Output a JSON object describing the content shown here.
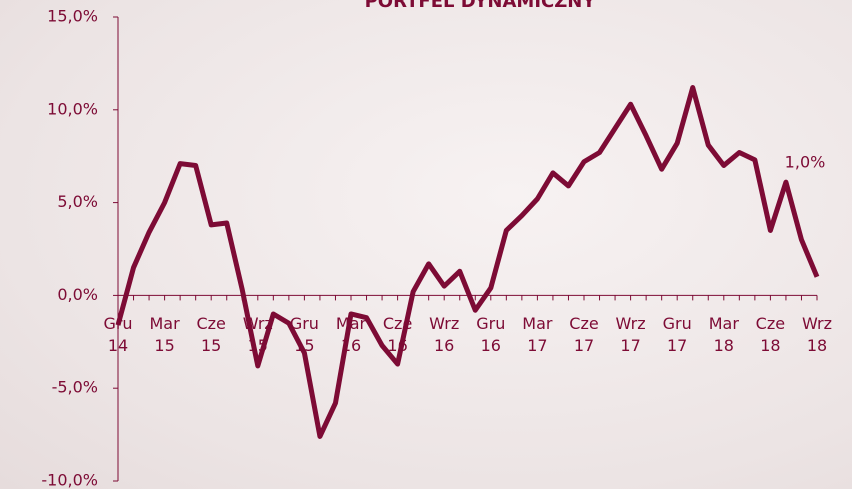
{
  "chart_data": {
    "type": "line",
    "title": "PORTFEL DYNAMICZNY",
    "categories": [
      "Gru 14",
      null,
      null,
      "Mar 15",
      null,
      null,
      "Cze 15",
      null,
      null,
      "Wrz 15",
      null,
      null,
      "Gru 15",
      null,
      null,
      "Mar 16",
      null,
      null,
      "Cze 16",
      null,
      null,
      "Wrz 16",
      null,
      null,
      "Gru 16",
      null,
      null,
      "Mar 17",
      null,
      null,
      "Cze 17",
      null,
      null,
      "Wrz 17",
      null,
      null,
      "Gru 17",
      null,
      null,
      "Mar 18",
      null,
      null,
      "Cze 18",
      null,
      null,
      "Wrz 18"
    ],
    "series": [
      {
        "name": "Portfel dynamiczny",
        "color": "#7d0b35",
        "values": [
          -1.6,
          1.5,
          3.4,
          5.0,
          7.1,
          7.0,
          3.8,
          3.9,
          0.3,
          -3.8,
          -1.0,
          -1.5,
          -3.1,
          -7.6,
          -5.8,
          -1.0,
          -1.2,
          -2.7,
          -3.7,
          0.2,
          1.7,
          0.5,
          1.3,
          -0.8,
          0.4,
          3.5,
          4.3,
          5.2,
          6.6,
          5.9,
          7.2,
          7.7,
          9.0,
          10.3,
          8.6,
          6.8,
          8.2,
          11.2,
          8.1,
          7.0,
          7.7,
          7.3,
          3.5,
          6.1,
          3.0,
          1.0
        ],
        "value_labels": [
          null,
          null,
          null,
          null,
          null,
          null,
          null,
          null,
          null,
          null,
          null,
          null,
          null,
          null,
          null,
          null,
          null,
          null,
          null,
          null,
          null,
          null,
          null,
          null,
          null,
          null,
          null,
          null,
          null,
          null,
          null,
          null,
          null,
          null,
          null,
          null,
          null,
          null,
          null,
          null,
          null,
          null,
          null,
          null,
          null,
          "1,0%"
        ]
      }
    ],
    "ylim": [
      -10,
      15
    ],
    "yticks": [
      {
        "value": -10,
        "label": "-10,0%"
      },
      {
        "value": -5,
        "label": "-5,0%"
      },
      {
        "value": 0,
        "label": "0,0%"
      },
      {
        "value": 5,
        "label": "5,0%"
      },
      {
        "value": 10,
        "label": "10,0%"
      },
      {
        "value": 15,
        "label": "15,0%"
      }
    ],
    "grid": false
  }
}
